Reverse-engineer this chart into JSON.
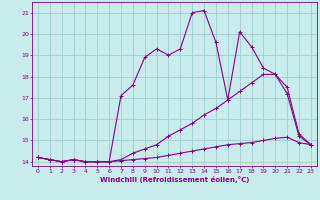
{
  "title": "",
  "xlabel": "Windchill (Refroidissement éolien,°C)",
  "ylabel": "",
  "xlim": [
    -0.5,
    23.5
  ],
  "ylim": [
    13.8,
    21.5
  ],
  "xticks": [
    0,
    1,
    2,
    3,
    4,
    5,
    6,
    7,
    8,
    9,
    10,
    11,
    12,
    13,
    14,
    15,
    16,
    17,
    18,
    19,
    20,
    21,
    22,
    23
  ],
  "yticks": [
    14,
    15,
    16,
    17,
    18,
    19,
    20,
    21
  ],
  "background_color": "#c8ecec",
  "grid_color": "#9ecece",
  "line_color": "#880088",
  "line1_x": [
    0,
    1,
    2,
    3,
    4,
    5,
    6,
    7,
    8,
    9,
    10,
    11,
    12,
    13,
    14,
    15,
    16,
    17,
    18,
    19,
    20,
    21,
    22,
    23
  ],
  "line1_y": [
    14.2,
    14.1,
    14.0,
    14.1,
    14.0,
    14.0,
    14.0,
    14.05,
    14.1,
    14.15,
    14.2,
    14.3,
    14.4,
    14.5,
    14.6,
    14.7,
    14.8,
    14.85,
    14.9,
    15.0,
    15.1,
    15.15,
    14.9,
    14.8
  ],
  "line2_x": [
    0,
    1,
    2,
    3,
    4,
    5,
    6,
    7,
    8,
    9,
    10,
    11,
    12,
    13,
    14,
    15,
    16,
    17,
    18,
    19,
    20,
    21,
    22,
    23
  ],
  "line2_y": [
    14.2,
    14.1,
    14.0,
    14.1,
    14.0,
    14.0,
    14.0,
    14.1,
    14.4,
    14.6,
    14.8,
    15.2,
    15.5,
    15.8,
    16.2,
    16.5,
    16.9,
    17.3,
    17.7,
    18.1,
    18.1,
    17.5,
    15.3,
    14.8
  ],
  "line3_x": [
    0,
    1,
    2,
    3,
    4,
    5,
    6,
    7,
    8,
    9,
    10,
    11,
    12,
    13,
    14,
    15,
    16,
    17,
    18,
    19,
    20,
    21,
    22,
    23
  ],
  "line3_y": [
    14.2,
    14.1,
    14.0,
    14.1,
    14.0,
    14.0,
    14.0,
    17.1,
    17.6,
    18.9,
    19.3,
    19.0,
    19.3,
    21.0,
    21.1,
    19.6,
    16.9,
    20.1,
    19.4,
    18.4,
    18.1,
    17.2,
    15.2,
    14.8
  ]
}
